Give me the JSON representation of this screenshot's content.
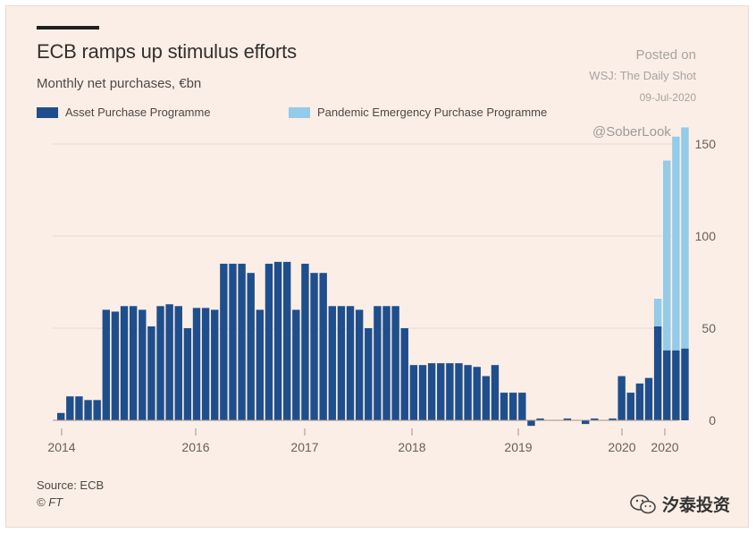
{
  "header": {
    "title": "ECB ramps up stimulus efforts",
    "subtitle": "Monthly net purchases, €bn"
  },
  "legend": {
    "app": "Asset Purchase Programme",
    "pepp": "Pandemic Emergency Purchase Programme"
  },
  "watermark": {
    "posted_on": "Posted on",
    "publication": "WSJ: The Daily Shot",
    "date": "09-Jul-2020",
    "handle": "@SoberLook",
    "wechat_name": "汐泰投资"
  },
  "footer": {
    "source": "Source: ECB",
    "copyright": "© FT"
  },
  "colors": {
    "app": "#1f4e8c",
    "pepp": "#93cbe9",
    "background": "#fbeee6",
    "grid": "#e6d9d1"
  },
  "chart_data": {
    "type": "bar",
    "stacked": true,
    "x_tick_labels": [
      "2014",
      "2016",
      "2017",
      "2018",
      "2019",
      "2020",
      "2020"
    ],
    "y_ticks": [
      0,
      50,
      100,
      150
    ],
    "ylim": [
      -5,
      160
    ],
    "grid": true,
    "y_axis_position": "right",
    "series": [
      {
        "name": "Asset Purchase Programme",
        "values": [
          4,
          13,
          13,
          11,
          11,
          60,
          59,
          62,
          62,
          60,
          51,
          62,
          63,
          62,
          50,
          61,
          61,
          60,
          85,
          85,
          85,
          80,
          60,
          85,
          86,
          86,
          60,
          85,
          80,
          80,
          62,
          62,
          62,
          60,
          50,
          62,
          62,
          62,
          50,
          30,
          30,
          31,
          31,
          31,
          31,
          30,
          29,
          24,
          30,
          15,
          15,
          15,
          -3,
          1,
          0,
          0,
          1,
          0,
          -2,
          1,
          0,
          1,
          24,
          15,
          20,
          23,
          51,
          38,
          38,
          39
        ]
      },
      {
        "name": "Pandemic Emergency Purchase Programme",
        "values": [
          0,
          0,
          0,
          0,
          0,
          0,
          0,
          0,
          0,
          0,
          0,
          0,
          0,
          0,
          0,
          0,
          0,
          0,
          0,
          0,
          0,
          0,
          0,
          0,
          0,
          0,
          0,
          0,
          0,
          0,
          0,
          0,
          0,
          0,
          0,
          0,
          0,
          0,
          0,
          0,
          0,
          0,
          0,
          0,
          0,
          0,
          0,
          0,
          0,
          0,
          0,
          0,
          0,
          0,
          0,
          0,
          0,
          0,
          0,
          0,
          0,
          0,
          0,
          0,
          0,
          0,
          15,
          103,
          116,
          120
        ]
      }
    ]
  }
}
